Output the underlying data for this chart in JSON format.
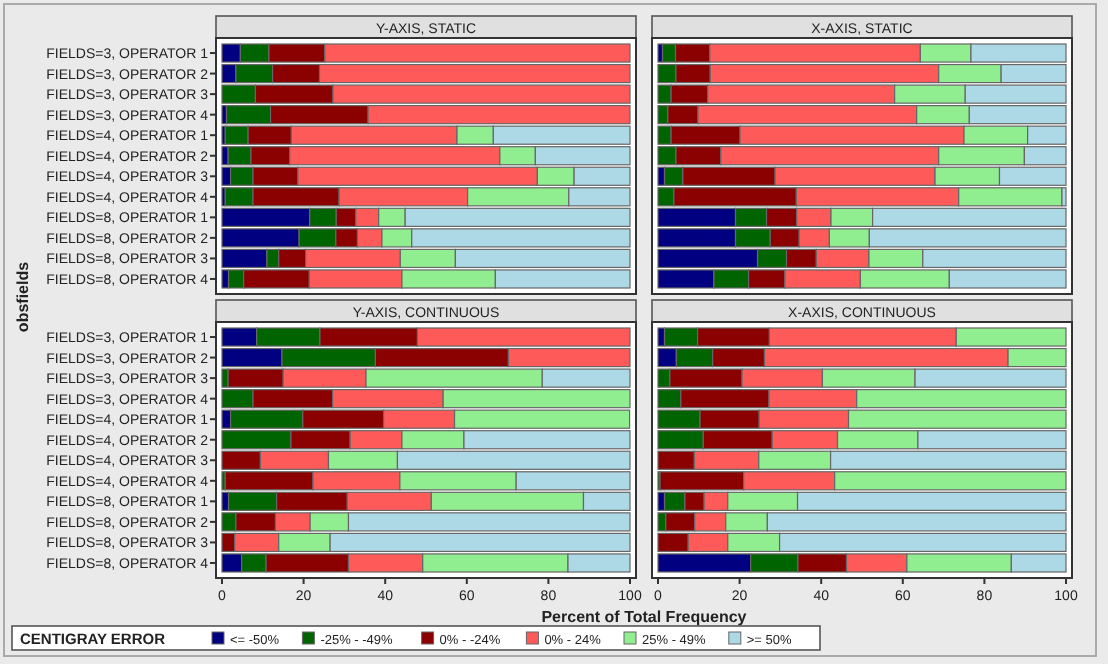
{
  "chart_data": [
    {
      "type": "bar",
      "orientation": "horizontal",
      "stacked": true,
      "title": "Y-AXIS, STATIC",
      "ylabel": "obsfields",
      "legend": "bottom",
      "legend_title": "CENTIGRAY ERROR",
      "tick_labels": "y",
      "xlim": [
        0,
        100
      ],
      "xticks": [
        0,
        20,
        40,
        60,
        80,
        100
      ],
      "categories": [
        "FIELDS=3, OPERATOR 1",
        "FIELDS=3, OPERATOR 2",
        "FIELDS=3, OPERATOR 3",
        "FIELDS=3, OPERATOR 4",
        "FIELDS=4, OPERATOR 1",
        "FIELDS=4, OPERATOR 2",
        "FIELDS=4, OPERATOR 3",
        "FIELDS=4, OPERATOR 4",
        "FIELDS=8, OPERATOR 1",
        "FIELDS=8, OPERATOR 2",
        "FIELDS=8, OPERATOR 3",
        "FIELDS=8, OPERATOR 4"
      ],
      "series": [
        {
          "name": "<= -50%",
          "color": "#000080",
          "values": [
            4.5,
            3.4,
            0,
            1.1,
            0.8,
            1.5,
            2.1,
            0.8,
            21.5,
            18.9,
            11,
            1.6
          ]
        },
        {
          "name": "-25% - -49%",
          "color": "#006400",
          "values": [
            7,
            9,
            8.2,
            10.8,
            5.6,
            5.6,
            5.5,
            6.8,
            6.5,
            9,
            2.9,
            3.7
          ]
        },
        {
          "name": "0% - -24%",
          "color": "#8b0000",
          "values": [
            13.7,
            11.5,
            19,
            23.9,
            10.6,
            9.5,
            11,
            21.1,
            4.8,
            5.3,
            6.6,
            16.1
          ]
        },
        {
          "name": "0% - 24%",
          "color": "#ff5a5a",
          "values": [
            74.8,
            76.1,
            72.8,
            64.2,
            40.6,
            51.5,
            58.7,
            31.5,
            5.6,
            6,
            23.2,
            22.7
          ]
        },
        {
          "name": "25% - 49%",
          "color": "#90ee90",
          "values": [
            0,
            0,
            0,
            0,
            8.9,
            8.7,
            9,
            24.8,
            6.5,
            7.3,
            13.5,
            22.9
          ]
        },
        {
          "name": ">= 50%",
          "color": "#add8e6",
          "values": [
            0,
            0,
            0,
            0,
            33.5,
            23.2,
            13.7,
            15,
            55.1,
            53.5,
            42.8,
            33
          ]
        }
      ]
    },
    {
      "type": "bar",
      "orientation": "horizontal",
      "stacked": true,
      "title": "X-AXIS, STATIC",
      "tick_labels": false,
      "xlim": [
        0,
        100
      ],
      "xticks": [
        0,
        20,
        40,
        60,
        80,
        100
      ],
      "categories": [
        "FIELDS=3, OPERATOR 1",
        "FIELDS=3, OPERATOR 2",
        "FIELDS=3, OPERATOR 3",
        "FIELDS=3, OPERATOR 4",
        "FIELDS=4, OPERATOR 1",
        "FIELDS=4, OPERATOR 2",
        "FIELDS=4, OPERATOR 3",
        "FIELDS=4, OPERATOR 4",
        "FIELDS=8, OPERATOR 1",
        "FIELDS=8, OPERATOR 2",
        "FIELDS=8, OPERATOR 3",
        "FIELDS=8, OPERATOR 4"
      ],
      "series": [
        {
          "name": "<= -50%",
          "color": "#000080",
          "values": [
            1.1,
            0,
            0,
            0,
            0,
            0,
            1.6,
            0,
            19,
            19,
            24.4,
            13.7
          ]
        },
        {
          "name": "-25% - -49%",
          "color": "#006400",
          "values": [
            3.2,
            4.4,
            3.2,
            2.4,
            3.2,
            4.4,
            4.5,
            3.9,
            7.6,
            8.5,
            7.1,
            8.5
          ]
        },
        {
          "name": "0% - -24%",
          "color": "#8b0000",
          "values": [
            8.4,
            8.4,
            9,
            7.4,
            16.9,
            11,
            22.6,
            30,
            7.4,
            7.1,
            7.3,
            8.9
          ]
        },
        {
          "name": "0% - 24%",
          "color": "#ff5a5a",
          "values": [
            51.6,
            56,
            45.8,
            53.6,
            54.9,
            53.4,
            39.2,
            39.8,
            8.4,
            7.4,
            12.9,
            18.5
          ]
        },
        {
          "name": "25% - 49%",
          "color": "#90ee90",
          "values": [
            12.4,
            15.3,
            17.3,
            12.9,
            15.6,
            21,
            15.8,
            25.3,
            10.2,
            9.8,
            13.2,
            21.8
          ]
        },
        {
          "name": ">= 50%",
          "color": "#add8e6",
          "values": [
            23.3,
            15.9,
            24.7,
            23.7,
            9.4,
            10.2,
            16.3,
            1,
            47.4,
            48.2,
            35.1,
            28.6
          ]
        }
      ]
    },
    {
      "type": "bar",
      "orientation": "horizontal",
      "stacked": true,
      "title": "Y-AXIS, CONTINUOUS",
      "xlabel": "Percent of Total Frequency",
      "xlim": [
        0,
        100
      ],
      "xticks": [
        0,
        20,
        40,
        60,
        80,
        100
      ],
      "categories": [
        "FIELDS=3, OPERATOR 1",
        "FIELDS=3, OPERATOR 2",
        "FIELDS=3, OPERATOR 3",
        "FIELDS=3, OPERATOR 4",
        "FIELDS=4, OPERATOR 1",
        "FIELDS=4, OPERATOR 2",
        "FIELDS=4, OPERATOR 3",
        "FIELDS=4, OPERATOR 4",
        "FIELDS=8, OPERATOR 1",
        "FIELDS=8, OPERATOR 2",
        "FIELDS=8, OPERATOR 3",
        "FIELDS=8, OPERATOR 4"
      ],
      "series": [
        {
          "name": "<= -50%",
          "color": "#000080",
          "values": [
            8.5,
            14.7,
            0,
            0,
            2.1,
            0,
            0,
            0,
            1.6,
            0,
            0,
            4.8
          ]
        },
        {
          "name": "-25% - -49%",
          "color": "#006400",
          "values": [
            15.5,
            22.9,
            1.5,
            7.6,
            17.7,
            16.9,
            0,
            0.8,
            11.8,
            3.4,
            0,
            6
          ]
        },
        {
          "name": "0% - -24%",
          "color": "#8b0000",
          "values": [
            23.9,
            32.6,
            13.5,
            19.5,
            19.8,
            14.5,
            9.4,
            21.5,
            17.3,
            9.7,
            3.1,
            20.2
          ]
        },
        {
          "name": "0% - 24%",
          "color": "#ff5a5a",
          "values": [
            52.1,
            29.8,
            20.3,
            27.1,
            17.4,
            12.7,
            16.7,
            21.3,
            20.6,
            8.5,
            10.8,
            18.2
          ]
        },
        {
          "name": "25% - 49%",
          "color": "#90ee90",
          "values": [
            0,
            0,
            43.2,
            45.8,
            42.9,
            15.2,
            16.9,
            28.5,
            37.3,
            9.4,
            12.6,
            35.6
          ]
        },
        {
          "name": ">= 50%",
          "color": "#add8e6",
          "values": [
            0,
            0,
            21.5,
            0,
            0,
            40.7,
            57,
            27.9,
            11.4,
            69,
            73.5,
            15.2
          ]
        }
      ]
    },
    {
      "type": "bar",
      "orientation": "horizontal",
      "stacked": true,
      "title": "X-AXIS, CONTINUOUS",
      "tick_labels": "x",
      "xlim": [
        0,
        100
      ],
      "xticks": [
        0,
        20,
        40,
        60,
        80,
        100
      ],
      "categories": [
        "FIELDS=3, OPERATOR 1",
        "FIELDS=3, OPERATOR 2",
        "FIELDS=3, OPERATOR 3",
        "FIELDS=3, OPERATOR 4",
        "FIELDS=4, OPERATOR 1",
        "FIELDS=4, OPERATOR 2",
        "FIELDS=4, OPERATOR 3",
        "FIELDS=4, OPERATOR 4",
        "FIELDS=8, OPERATOR 1",
        "FIELDS=8, OPERATOR 2",
        "FIELDS=8, OPERATOR 3",
        "FIELDS=8, OPERATOR 4"
      ],
      "series": [
        {
          "name": "<= -50%",
          "color": "#000080",
          "values": [
            1.6,
            4.5,
            0,
            0,
            0,
            0,
            0,
            0,
            1.6,
            0,
            0,
            22.7
          ]
        },
        {
          "name": "-25% - -49%",
          "color": "#006400",
          "values": [
            8.1,
            8.9,
            2.9,
            5.6,
            10.3,
            11.1,
            0,
            0.5,
            5,
            1.9,
            0,
            11.6
          ]
        },
        {
          "name": "0% - -24%",
          "color": "#8b0000",
          "values": [
            17.6,
            12.7,
            17.7,
            21.6,
            14.5,
            16.9,
            8.9,
            20.5,
            4.7,
            7.1,
            7.4,
            11.9
          ]
        },
        {
          "name": "0% - 24%",
          "color": "#ff5a5a",
          "values": [
            45.8,
            59.7,
            19.7,
            21.5,
            21.9,
            16,
            15.8,
            22.3,
            5.8,
            7.6,
            9.7,
            14.8
          ]
        },
        {
          "name": "25% - 49%",
          "color": "#90ee90",
          "values": [
            26.9,
            14.2,
            22.7,
            51.3,
            53.3,
            19.7,
            17.6,
            56.7,
            17.1,
            10.2,
            12.7,
            25.6
          ]
        },
        {
          "name": ">= 50%",
          "color": "#add8e6",
          "values": [
            0,
            0,
            37,
            0,
            0,
            36.3,
            57.7,
            0,
            65.8,
            73.2,
            70.2,
            13.4
          ]
        }
      ]
    }
  ]
}
